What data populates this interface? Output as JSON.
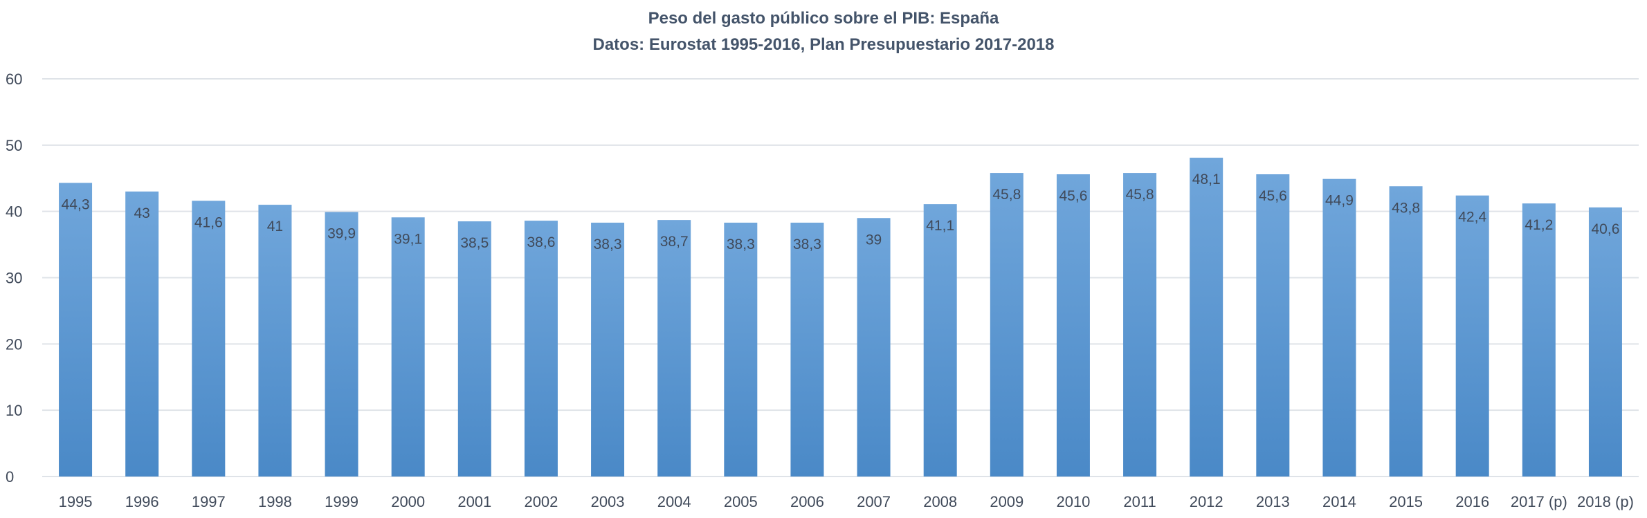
{
  "chart_data": {
    "type": "bar",
    "title": "Peso del gasto público sobre el PIB: España",
    "subtitle": "Datos: Eurostat 1995-2016, Plan Presupuestario 2017-2018",
    "xlabel": "",
    "ylabel": "",
    "ylim": [
      0,
      60
    ],
    "yticks": [
      "0",
      "10",
      "20",
      "30",
      "40",
      "50",
      "60"
    ],
    "grid": true,
    "categories": [
      "1995",
      "1996",
      "1997",
      "1998",
      "1999",
      "2000",
      "2001",
      "2002",
      "2003",
      "2004",
      "2005",
      "2006",
      "2007",
      "2008",
      "2009",
      "2010",
      "2011",
      "2012",
      "2013",
      "2014",
      "2015",
      "2016",
      "2017 (p)",
      "2018 (p)"
    ],
    "values": [
      44.3,
      43,
      41.6,
      41,
      39.9,
      39.1,
      38.5,
      38.6,
      38.3,
      38.7,
      38.3,
      38.3,
      39,
      41.1,
      45.8,
      45.6,
      45.8,
      48.1,
      45.6,
      44.9,
      43.8,
      42.4,
      41.2,
      40.6
    ],
    "data_labels": [
      "44,3",
      "43",
      "41,6",
      "41",
      "39,9",
      "39,1",
      "38,5",
      "38,6",
      "38,3",
      "38,7",
      "38,3",
      "38,3",
      "39",
      "41,1",
      "45,8",
      "45,6",
      "45,8",
      "48,1",
      "45,6",
      "44,9",
      "43,8",
      "42,4",
      "41,2",
      "40,6"
    ],
    "colors": {
      "bar_top": "#70a6db",
      "bar_bottom": "#4a89c7",
      "grid": "#dfe3e8",
      "text": "#404a5a"
    }
  }
}
